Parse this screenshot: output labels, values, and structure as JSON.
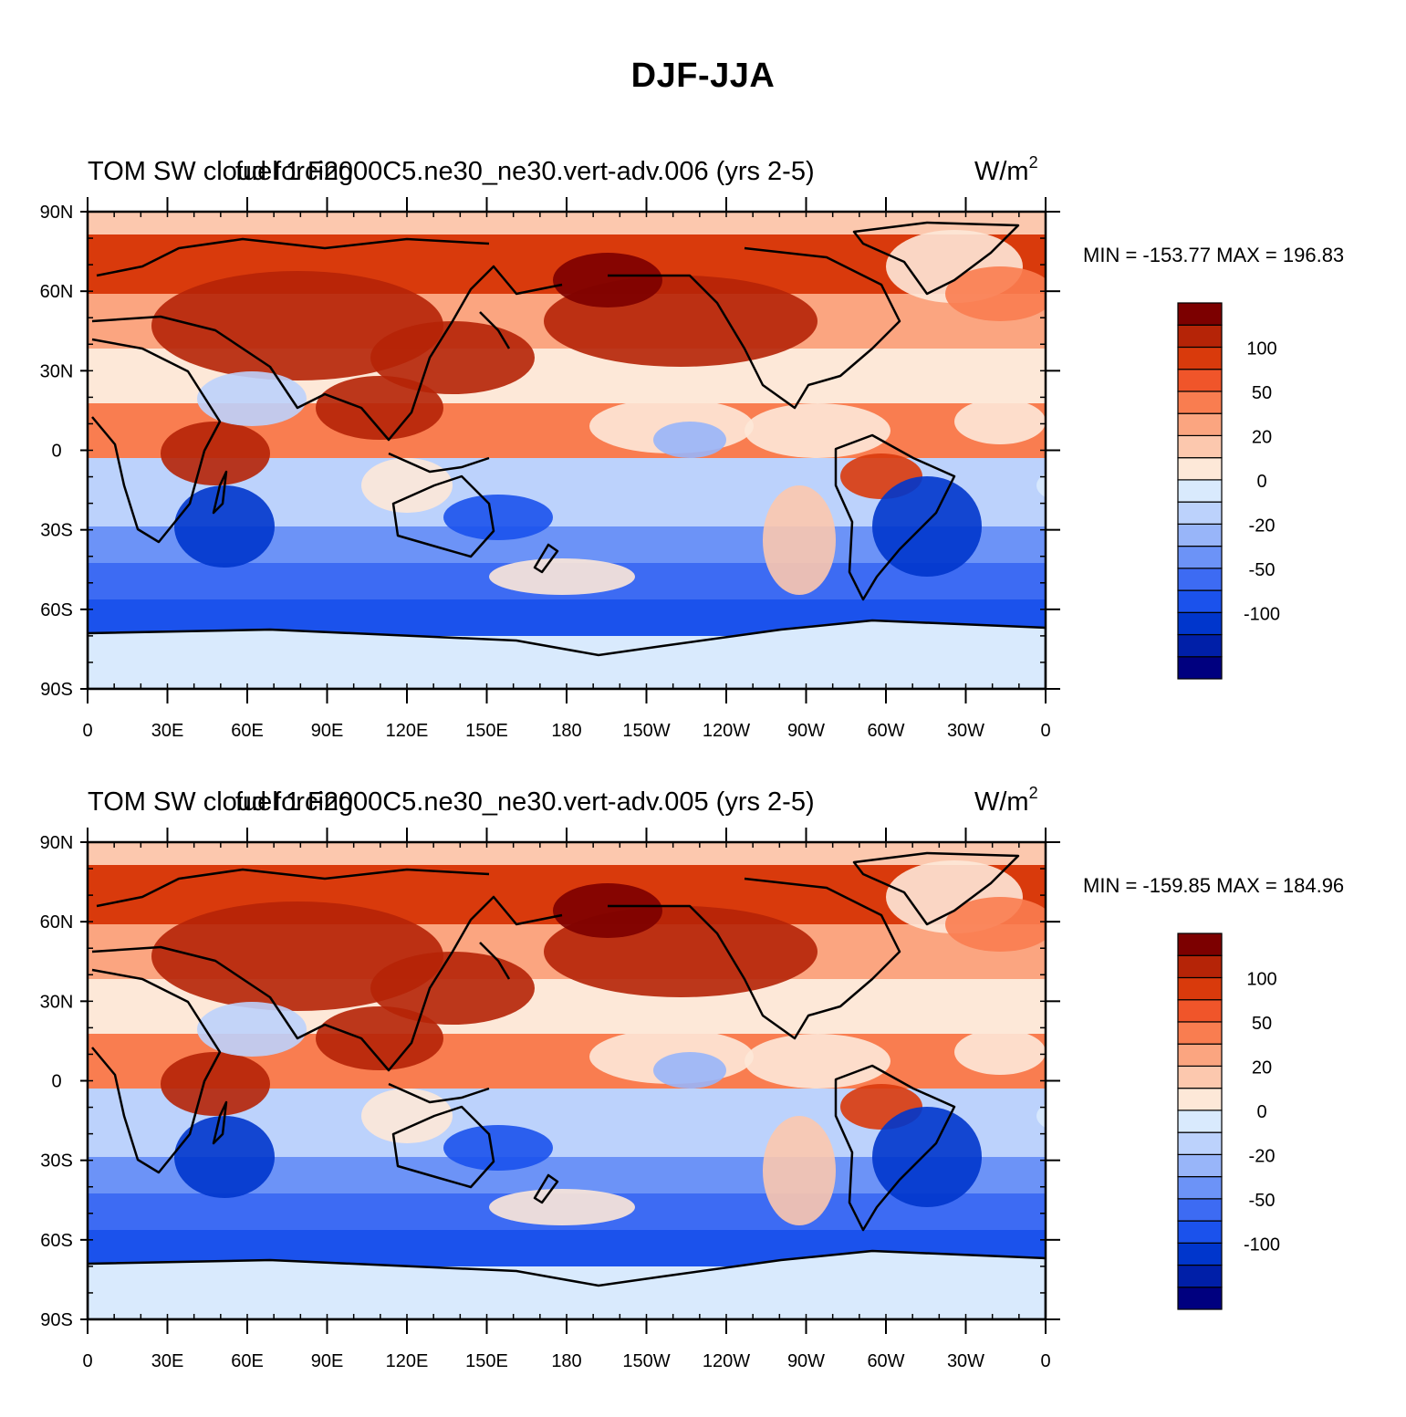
{
  "title": "DJF-JJA",
  "colorbar": {
    "colors": [
      "#00007f",
      "#001fa8",
      "#0036cc",
      "#1b52ec",
      "#3d6bf3",
      "#6c93f7",
      "#98b5f9",
      "#bcd2fc",
      "#d9eafd",
      "#fde8d8",
      "#fcc8ae",
      "#fba580",
      "#f97d50",
      "#f0552a",
      "#d93a0c",
      "#b52407",
      "#7c0000"
    ],
    "labels": [
      "100",
      "50",
      "20",
      "0",
      "-20",
      "-50",
      "-100"
    ]
  },
  "axes": {
    "lat_labels": [
      "90N",
      "60N",
      "30N",
      "0",
      "30S",
      "60S",
      "90S"
    ],
    "lon_labels": [
      "0",
      "30E",
      "60E",
      "90E",
      "120E",
      "150E",
      "180",
      "150W",
      "120W",
      "90W",
      "60W",
      "30W",
      "0"
    ]
  },
  "panels": [
    {
      "left_title": "TOM SW cloud forcing",
      "center_title": "fuel 1 F2000C5.ne30_ne30.vert-adv.006 (yrs 2-5)",
      "units": "W/m",
      "units_sup": "2",
      "minmax": "MIN = -153.77 MAX = 196.83"
    },
    {
      "left_title": "TOM SW cloud forcing",
      "center_title": "fuel 1 F2000C5.ne30_ne30.vert-adv.005 (yrs 2-5)",
      "units": "W/m",
      "units_sup": "2",
      "minmax": "MIN = -159.85 MAX = 184.96"
    }
  ]
}
